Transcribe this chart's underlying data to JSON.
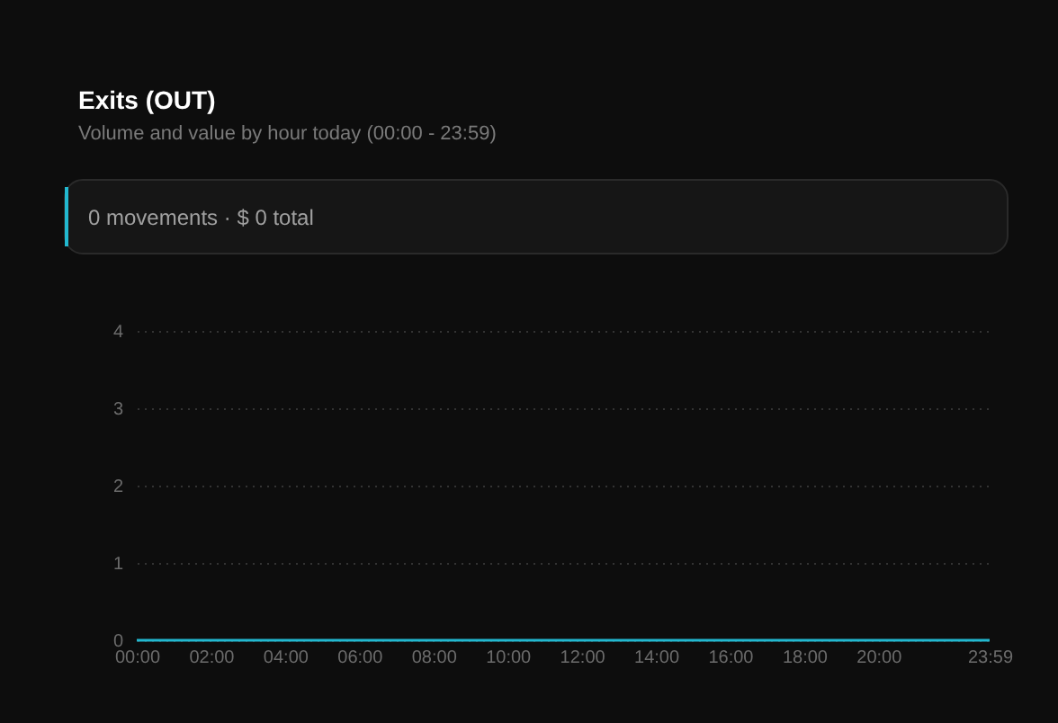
{
  "chart_data": {
    "type": "line",
    "title": "Exits (OUT)",
    "subtitle": "Volume and value by hour today (00:00 - 23:59)",
    "annotations": [
      "0 movements · $ 0 total"
    ],
    "categories": [
      "00:00",
      null,
      "02:00",
      null,
      "04:00",
      null,
      "06:00",
      null,
      "08:00",
      null,
      "10:00",
      null,
      "12:00",
      null,
      "14:00",
      null,
      "16:00",
      null,
      "18:00",
      null,
      "20:00",
      null,
      null,
      "23:59"
    ],
    "series": [
      {
        "color": "#22b8cf",
        "values": [
          0,
          0,
          0,
          0,
          0,
          0,
          0,
          0,
          0,
          0,
          0,
          0,
          0,
          0,
          0,
          0,
          0,
          0,
          0,
          0,
          0,
          0,
          0,
          0
        ]
      }
    ],
    "ylim": [
      0,
      4
    ],
    "yticks": [
      0,
      1,
      2,
      3,
      4
    ],
    "grid": "y",
    "marker": "none",
    "line_style": "solid"
  }
}
